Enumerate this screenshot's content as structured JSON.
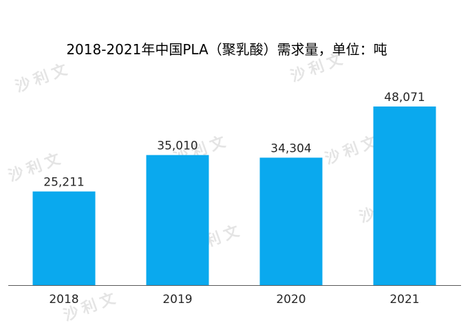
{
  "watermark_text": "沙利文",
  "chart_data": {
    "type": "bar",
    "title": "2018-2021年中国PLA（聚乳酸）需求量，单位：吨",
    "categories": [
      "2018",
      "2019",
      "2020",
      "2021"
    ],
    "values": [
      25211,
      35010,
      34304,
      48071
    ],
    "value_labels": [
      "25,211",
      "35,010",
      "34,304",
      "48,071"
    ],
    "xlabel": "",
    "ylabel": "",
    "ylim": [
      0,
      48071
    ],
    "grid": false,
    "bar_color": "#0aa9ee",
    "axis_color": "#595959"
  }
}
